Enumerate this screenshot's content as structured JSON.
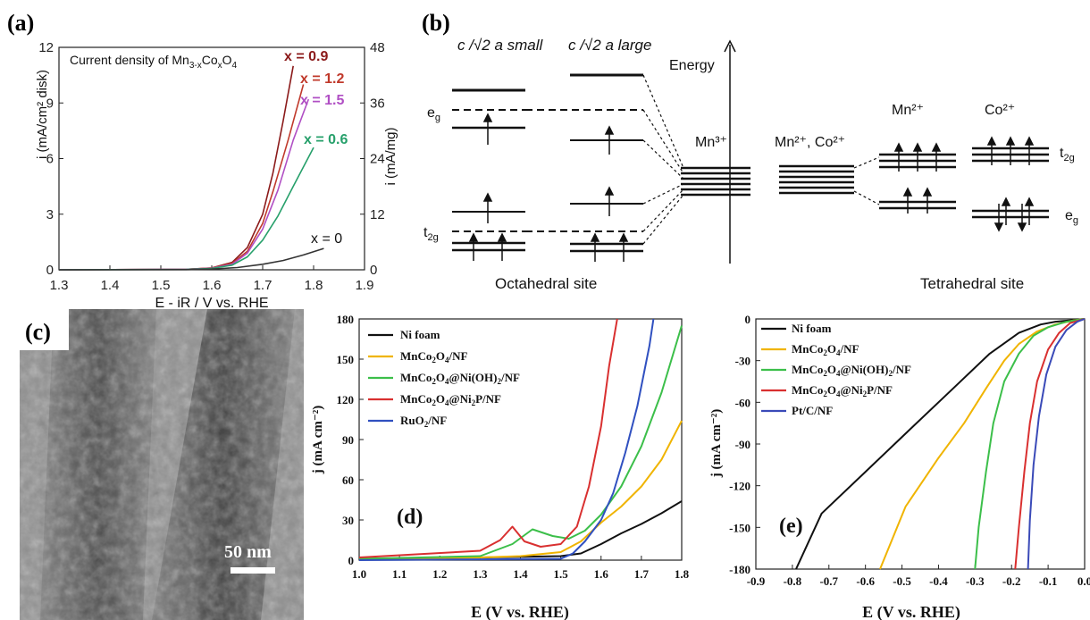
{
  "figure": {
    "labels": {
      "a": "(a)",
      "b": "(b)",
      "c": "(c)",
      "d": "(d)",
      "e": "(e)"
    }
  },
  "chart_data": [
    {
      "panel": "a",
      "type": "line",
      "title": "Current density of Mn3-xCoxO4",
      "title_parts": {
        "main": "Current density of Mn",
        "s1": "3-x",
        "co": "Co",
        "s2": "x",
        "o": "O",
        "s3": "4"
      },
      "xlabel": "E - iR / V vs. RHE",
      "ylabel": "i (mA/cm² disk)",
      "y2label": "i (mA/mg)",
      "xlim": [
        1.3,
        1.9
      ],
      "ylim": [
        0,
        12
      ],
      "y2lim": [
        0,
        48
      ],
      "xticks": [
        "1.3",
        "1.4",
        "1.5",
        "1.6",
        "1.7",
        "1.8",
        "1.9"
      ],
      "yticks": [
        "0",
        "3",
        "6",
        "9",
        "12"
      ],
      "y2ticks": [
        "0",
        "12",
        "24",
        "36",
        "48"
      ],
      "series": [
        {
          "name": "x = 0.9",
          "color": "#8b1a1a",
          "x": [
            1.3,
            1.55,
            1.6,
            1.64,
            1.67,
            1.7,
            1.72,
            1.74,
            1.76
          ],
          "y": [
            0,
            0.03,
            0.1,
            0.4,
            1.2,
            3.0,
            5.2,
            8.0,
            11.0
          ]
        },
        {
          "name": "x = 1.2",
          "color": "#c0392b",
          "x": [
            1.3,
            1.55,
            1.6,
            1.64,
            1.67,
            1.7,
            1.72,
            1.75,
            1.78
          ],
          "y": [
            0,
            0.03,
            0.09,
            0.35,
            1.0,
            2.5,
            4.2,
            7.0,
            10.0
          ]
        },
        {
          "name": "x = 1.5",
          "color": "#b04fc4",
          "x": [
            1.3,
            1.55,
            1.6,
            1.64,
            1.67,
            1.7,
            1.73,
            1.76,
            1.79
          ],
          "y": [
            0,
            0.03,
            0.08,
            0.3,
            0.9,
            2.2,
            4.3,
            7.0,
            9.2
          ]
        },
        {
          "name": "x = 0.6",
          "color": "#27a06b",
          "x": [
            1.3,
            1.55,
            1.6,
            1.64,
            1.67,
            1.7,
            1.73,
            1.76,
            1.8
          ],
          "y": [
            0,
            0.02,
            0.07,
            0.25,
            0.7,
            1.6,
            2.9,
            4.5,
            6.6
          ]
        },
        {
          "name": "x = 0",
          "color": "#333333",
          "x": [
            1.3,
            1.55,
            1.6,
            1.65,
            1.7,
            1.74,
            1.78,
            1.82
          ],
          "y": [
            0,
            0.01,
            0.04,
            0.12,
            0.3,
            0.5,
            0.8,
            1.15
          ]
        }
      ],
      "labels": {
        "x09": "x = 0.9",
        "x12": "x = 1.2",
        "x15": "x = 1.5",
        "x06": "x = 0.6",
        "x0": "x = 0"
      }
    },
    {
      "panel": "d",
      "type": "line",
      "xlabel": "E (V vs. RHE)",
      "ylabel": "j (mA cm⁻²)",
      "xlim": [
        1.0,
        1.8
      ],
      "ylim": [
        0,
        180
      ],
      "xticks": [
        "1.0",
        "1.1",
        "1.2",
        "1.3",
        "1.4",
        "1.5",
        "1.6",
        "1.7",
        "1.8"
      ],
      "yticks": [
        "0",
        "30",
        "60",
        "90",
        "120",
        "150",
        "180"
      ],
      "series": [
        {
          "name": "Ni foam",
          "color": "#111111",
          "x": [
            1.0,
            1.3,
            1.5,
            1.55,
            1.6,
            1.65,
            1.7,
            1.75,
            1.8
          ],
          "y": [
            1,
            2,
            3,
            5,
            12,
            20,
            27,
            35,
            44
          ]
        },
        {
          "name": "MnCo2O4/NF",
          "color": "#f0b400",
          "x": [
            1.0,
            1.3,
            1.4,
            1.5,
            1.55,
            1.6,
            1.65,
            1.7,
            1.75,
            1.8
          ],
          "y": [
            1,
            2,
            3,
            6,
            14,
            28,
            40,
            55,
            75,
            104
          ]
        },
        {
          "name": "MnCo2O4@Ni(OH)2/NF",
          "color": "#3cbf4a",
          "x": [
            1.0,
            1.3,
            1.38,
            1.43,
            1.48,
            1.52,
            1.56,
            1.6,
            1.65,
            1.7,
            1.75,
            1.8
          ],
          "y": [
            1,
            3,
            12,
            23,
            18,
            16,
            22,
            34,
            55,
            85,
            125,
            175
          ]
        },
        {
          "name": "MnCo2O4@Ni2P/NF",
          "color": "#d93030",
          "x": [
            1.0,
            1.3,
            1.35,
            1.38,
            1.41,
            1.45,
            1.5,
            1.54,
            1.57,
            1.6,
            1.62,
            1.64
          ],
          "y": [
            2,
            7,
            15,
            25,
            14,
            10,
            12,
            25,
            55,
            100,
            145,
            180
          ]
        },
        {
          "name": "RuO2/NF",
          "color": "#3050c0",
          "x": [
            1.0,
            1.5,
            1.53,
            1.56,
            1.6,
            1.63,
            1.66,
            1.69,
            1.72,
            1.73
          ],
          "y": [
            0,
            1,
            5,
            14,
            30,
            50,
            80,
            115,
            160,
            180
          ]
        }
      ],
      "legend": {
        "l1": "Ni foam",
        "l2": "MnCo",
        "l3": "MnCo",
        "l4": "MnCo",
        "l5": "RuO"
      }
    },
    {
      "panel": "e",
      "type": "line",
      "xlabel": "E (V vs. RHE)",
      "ylabel": "j (mA cm⁻²)",
      "xlim": [
        -0.9,
        0.0
      ],
      "ylim": [
        -180,
        0
      ],
      "xticks": [
        "-0.9",
        "-0.8",
        "-0.7",
        "-0.6",
        "-0.5",
        "-0.4",
        "-0.3",
        "-0.2",
        "-0.1",
        "0.0"
      ],
      "yticks": [
        "0",
        "-30",
        "-60",
        "-90",
        "-120",
        "-150",
        "-180"
      ],
      "series": [
        {
          "name": "Ni foam",
          "color": "#111111",
          "x": [
            -0.79,
            -0.72,
            -0.6,
            -0.48,
            -0.36,
            -0.26,
            -0.18,
            -0.12,
            -0.08,
            -0.04,
            0.0
          ],
          "y": [
            -180,
            -140,
            -110,
            -80,
            -50,
            -25,
            -10,
            -4,
            -2,
            -1,
            0
          ]
        },
        {
          "name": "MnCo2O4/NF",
          "color": "#f0b400",
          "x": [
            -0.56,
            -0.49,
            -0.4,
            -0.33,
            -0.27,
            -0.22,
            -0.18,
            -0.13,
            -0.08,
            -0.03,
            0.0
          ],
          "y": [
            -180,
            -135,
            -100,
            -75,
            -50,
            -30,
            -18,
            -9,
            -4,
            -1,
            0
          ]
        },
        {
          "name": "MnCo2O4@Ni(OH)2/NF",
          "color": "#3cbf4a",
          "x": [
            -0.3,
            -0.29,
            -0.27,
            -0.25,
            -0.22,
            -0.18,
            -0.14,
            -0.1,
            -0.05,
            0.0
          ],
          "y": [
            -180,
            -150,
            -110,
            -75,
            -45,
            -25,
            -12,
            -6,
            -2,
            0
          ]
        },
        {
          "name": "MnCo2O4@Ni2P/NF",
          "color": "#d93030",
          "x": [
            -0.19,
            -0.18,
            -0.165,
            -0.15,
            -0.13,
            -0.1,
            -0.07,
            -0.04,
            0.0
          ],
          "y": [
            -180,
            -150,
            -110,
            -75,
            -45,
            -22,
            -10,
            -3,
            0
          ]
        },
        {
          "name": "Pt/C/NF",
          "color": "#3a4ab8",
          "x": [
            -0.155,
            -0.15,
            -0.14,
            -0.125,
            -0.105,
            -0.08,
            -0.05,
            -0.02,
            0.0
          ],
          "y": [
            -180,
            -145,
            -105,
            -70,
            -40,
            -20,
            -8,
            -2,
            0
          ]
        }
      ],
      "legend": {
        "l1": "Ni foam",
        "l2": "MnCo",
        "l3": "MnCo",
        "l4": "MnCo",
        "l5": "Pt/C/NF"
      }
    }
  ],
  "diagram_b": {
    "oct_small": "c /√2 a small",
    "oct_large": "c /√2 a large",
    "energy": "Energy",
    "mn3": "Mn³⁺",
    "mn2co2": "Mn²⁺, Co²⁺",
    "mn2": "Mn²⁺",
    "co2": "Co²⁺",
    "eg": "e",
    "eg_sub": "g",
    "t2g": "t",
    "t2g_sub": "2g",
    "oct_site": "Octahedral site",
    "tet_site": "Tetrahedral site"
  },
  "tem": {
    "scale": "50 nm"
  }
}
